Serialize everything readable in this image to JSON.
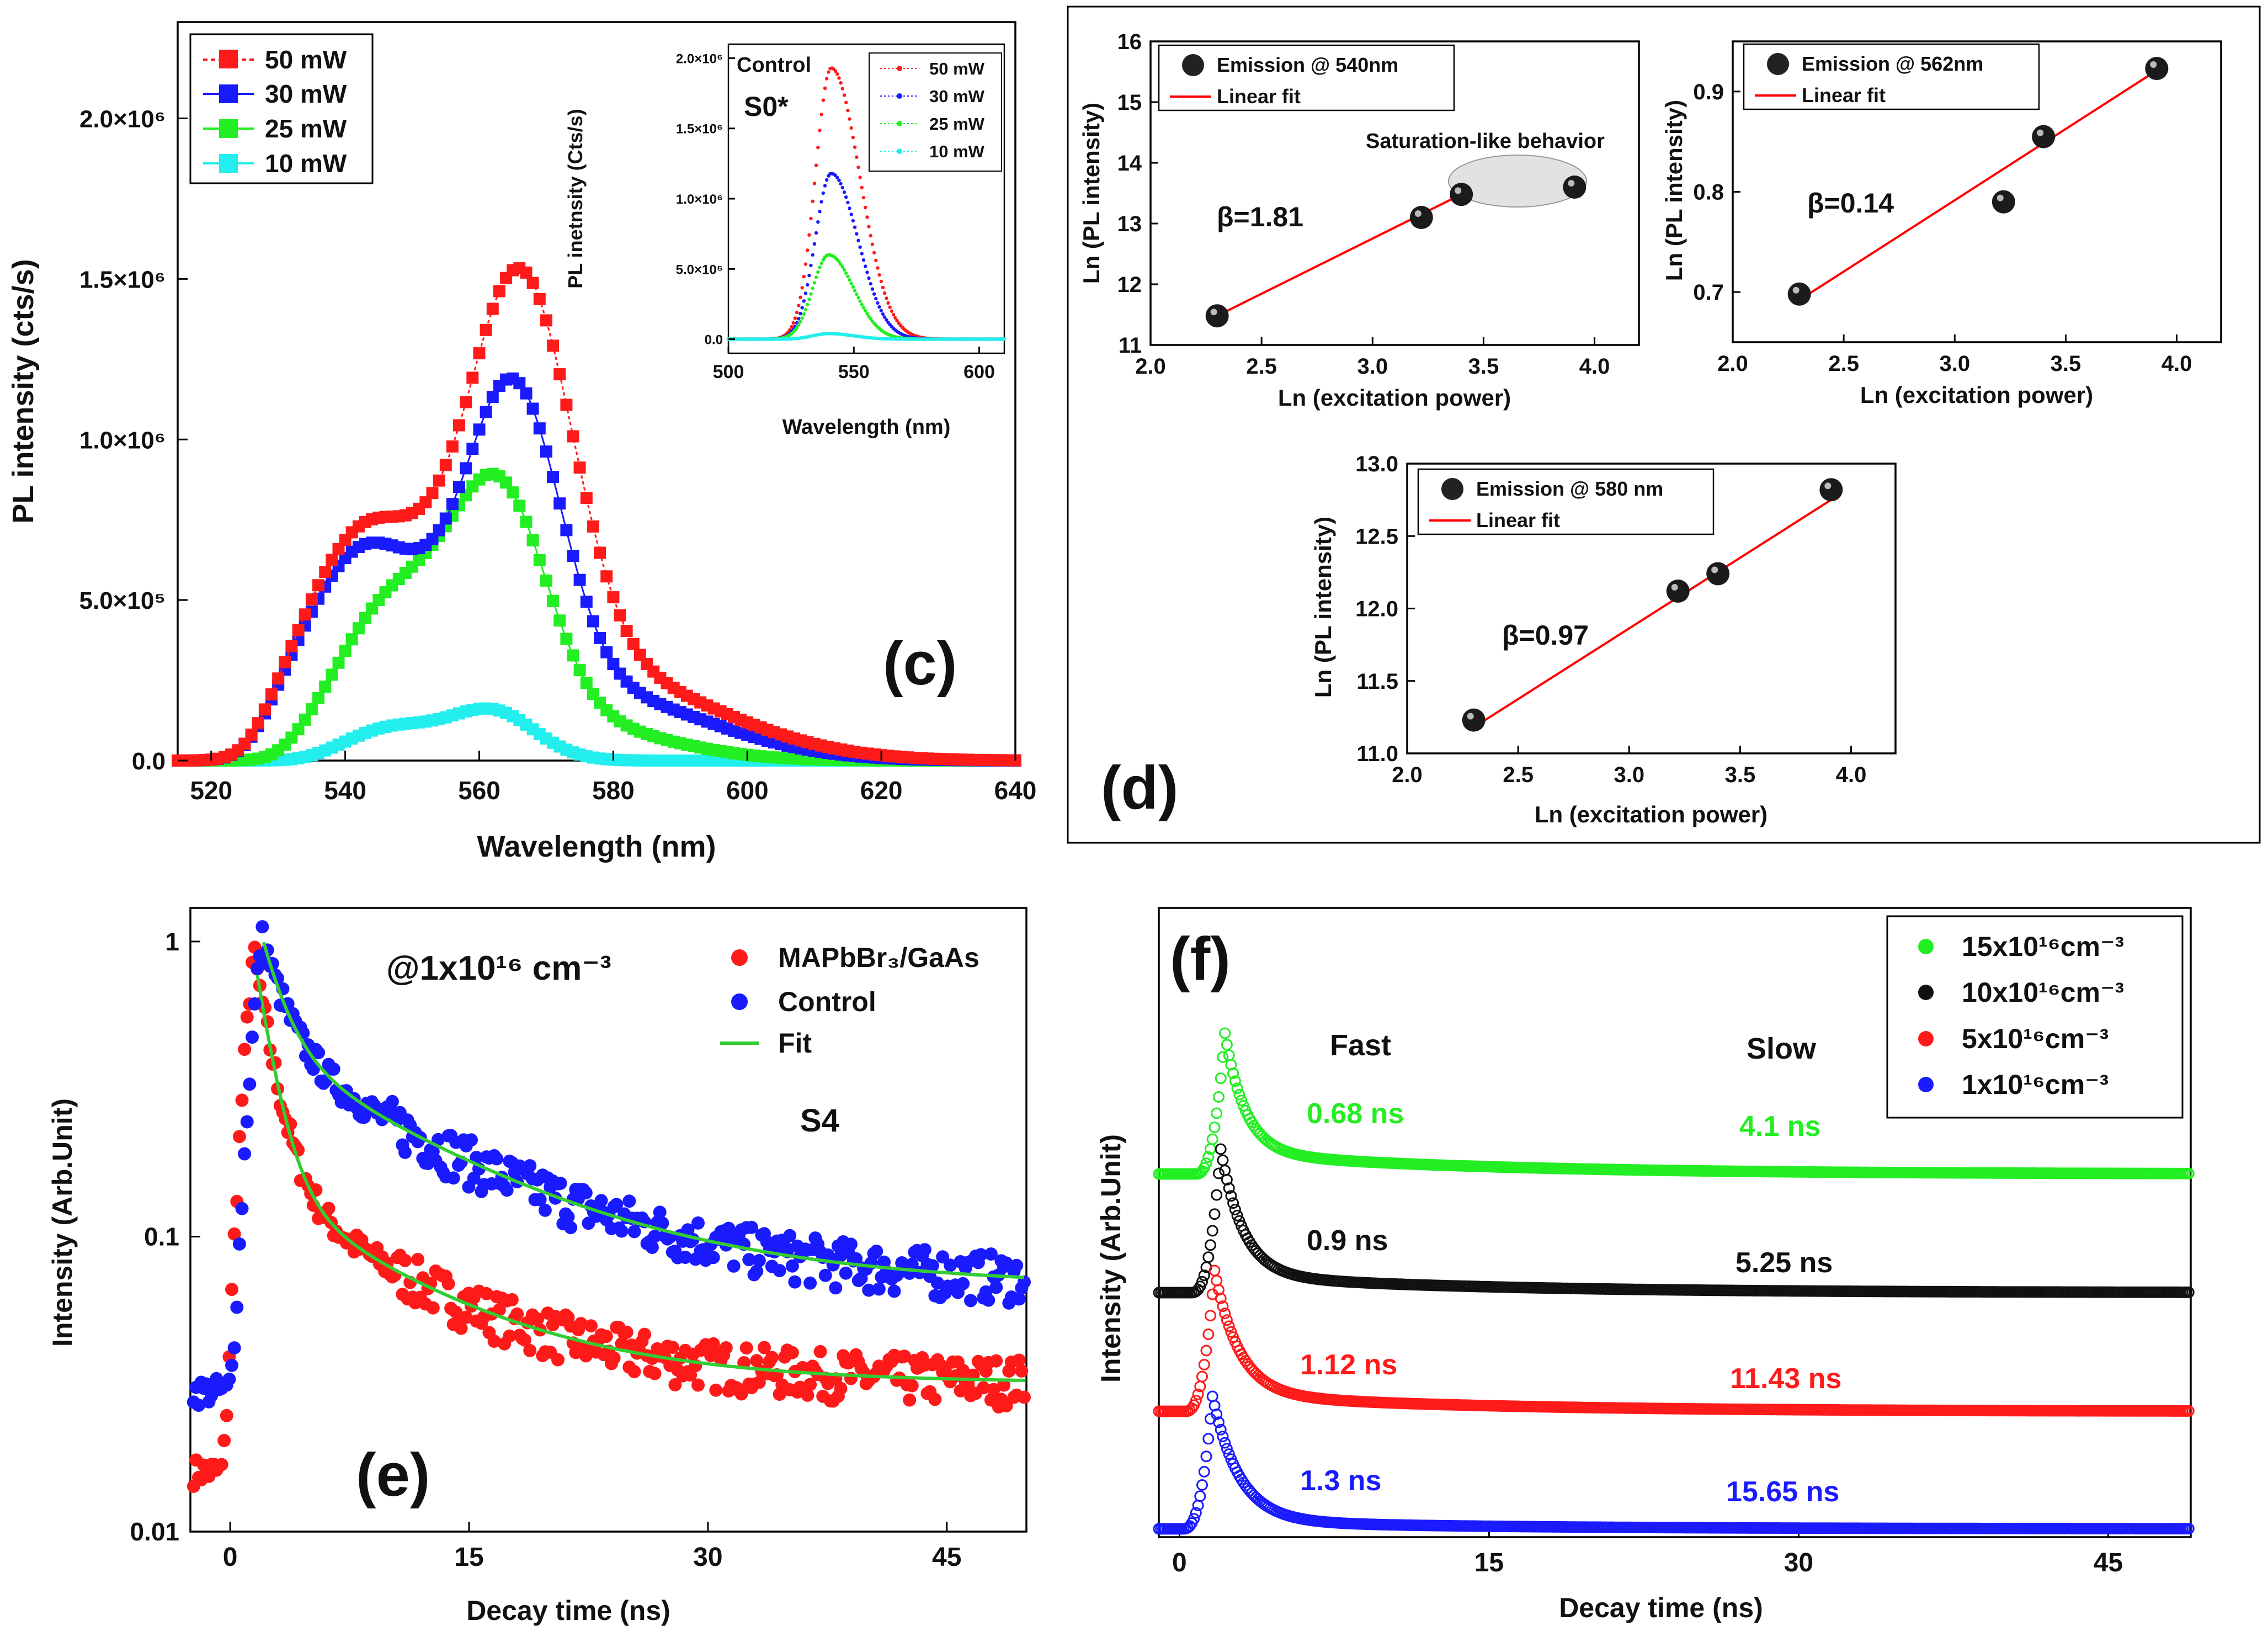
{
  "charts": {
    "c": {
      "panel_label": "(c)",
      "xlabel": "Wavelength (nm)",
      "ylabel": "PL intensity (cts/s)",
      "xticks": [
        "520",
        "540",
        "560",
        "580",
        "600",
        "620",
        "640"
      ],
      "yticks": [
        "0.0",
        "5.0×10⁵",
        "1.0×10⁶",
        "1.5×10⁶",
        "2.0×10⁶"
      ],
      "legend": [
        "50 mW",
        "30 mW",
        "25 mW",
        "10 mW"
      ],
      "inset": {
        "label_control": "Control",
        "label_sample": "S0*",
        "xlabel": "Wavelength (nm)",
        "ylabel": "PL inetnsity (Cts/s)",
        "xticks": [
          "500",
          "550",
          "600"
        ],
        "yticks": [
          "0.0",
          "5.0×10⁵",
          "1.0×10⁶",
          "1.5×10⁶",
          "2.0×10⁶"
        ],
        "legend": [
          "50 mW",
          "30 mW",
          "25 mW",
          "10 mW"
        ]
      }
    },
    "d": {
      "panel_label": "(d)",
      "p1": {
        "beta": "β=1.81",
        "legend_points": "Emission @ 540nm",
        "legend_fit": "Linear fit",
        "note": "Saturation-like behavior",
        "xlabel": "Ln (excitation power)",
        "ylabel": "Ln (PL intensity)",
        "xticks": [
          "2.0",
          "2.5",
          "3.0",
          "3.5",
          "4.0"
        ],
        "yticks": [
          "11",
          "12",
          "13",
          "14",
          "15",
          "16"
        ]
      },
      "p2": {
        "beta": "β=0.14",
        "legend_points": "Emission @ 562nm",
        "legend_fit": "Linear fit",
        "xlabel": "Ln (excitation power)",
        "ylabel": "Ln (PL intensity)",
        "xticks": [
          "2.0",
          "2.5",
          "3.0",
          "3.5",
          "4.0"
        ],
        "yticks": [
          "0.7",
          "0.8",
          "0.9"
        ]
      },
      "p3": {
        "beta": "β=0.97",
        "legend_points": "Emission @ 580 nm",
        "legend_fit": "Linear fit",
        "xlabel": "Ln (excitation power)",
        "ylabel": "Ln (PL intensity)",
        "xticks": [
          "2.0",
          "2.5",
          "3.0",
          "3.5",
          "4.0"
        ],
        "yticks": [
          "11.0",
          "11.5",
          "12.0",
          "12.5",
          "13.0"
        ]
      }
    },
    "e": {
      "panel_label": "(e)",
      "annotation": "@1x10¹⁶ cm⁻³",
      "sample": "S4",
      "xlabel": "Decay time (ns)",
      "ylabel": "Intensity (Arb.Unit)",
      "xticks": [
        "0",
        "15",
        "30",
        "45"
      ],
      "yticks": [
        "0.01",
        "0.1",
        "1"
      ],
      "legend": [
        "MAPbBr₃/GaAs",
        "Control",
        "Fit"
      ]
    },
    "f": {
      "panel_label": "(f)",
      "fast_label": "Fast",
      "slow_label": "Slow",
      "xlabel": "Decay time (ns)",
      "ylabel": "Intensity (Arb.Unit)",
      "xticks": [
        "0",
        "15",
        "30",
        "45"
      ],
      "legend": [
        "15x10¹⁶cm⁻³",
        "10x10¹⁶cm⁻³",
        "5x10¹⁶cm⁻³",
        "1x10¹⁶cm⁻³"
      ],
      "fast_times": [
        "0.68 ns",
        "0.9 ns",
        "1.12 ns",
        "1.3 ns"
      ],
      "slow_times": [
        "4.1 ns",
        "5.25 ns",
        "11.43 ns",
        "15.65 ns"
      ]
    }
  },
  "colors": {
    "red": "#ff1a1a",
    "blue": "#1a1aff",
    "green": "#22ee22",
    "cyan": "#22eeee",
    "black": "#111111",
    "fit_red": "#ff0000",
    "fit_green": "#33cc33"
  },
  "chart_data": [
    {
      "id": "c",
      "type": "line",
      "title": "(c)",
      "xlabel": "Wavelength (nm)",
      "ylabel": "PL intensity (cts/s)",
      "xlim": [
        515,
        640
      ],
      "ylim": [
        0,
        2300000
      ],
      "series": [
        {
          "name": "50 mW",
          "peaks": [
            [
              543,
              680000,
              14
            ],
            [
              566,
              1270000,
              11
            ],
            [
              577,
              260000,
              26
            ]
          ]
        },
        {
          "name": "30 mW",
          "peaks": [
            [
              543,
              640000,
              14
            ],
            [
              565,
              980000,
              10
            ],
            [
              577,
              200000,
              24
            ]
          ]
        },
        {
          "name": "25 mW",
          "peaks": [
            [
              547,
              470000,
              12
            ],
            [
              563,
              720000,
              10
            ],
            [
              573,
              110000,
              20
            ]
          ]
        },
        {
          "name": "10 mW",
          "peaks": [
            [
              547,
              100000,
              10
            ],
            [
              562,
              150000,
              9
            ]
          ]
        }
      ]
    },
    {
      "id": "c_inset",
      "type": "line",
      "title": "Control S0*",
      "xlabel": "Wavelength (nm)",
      "ylabel": "PL inetnsity (Cts/s)",
      "xlim": [
        500,
        610
      ],
      "ylim": [
        -100000,
        2100000
      ],
      "series": [
        {
          "name": "50 mW",
          "peak_x": 541,
          "peak_y": 1930000,
          "width_left": 9,
          "width_right": 16
        },
        {
          "name": "30 mW",
          "peak_x": 541,
          "peak_y": 1180000,
          "width_left": 9,
          "width_right": 15
        },
        {
          "name": "25 mW",
          "peak_x": 540,
          "peak_y": 600000,
          "width_left": 9,
          "width_right": 14
        },
        {
          "name": "10 mW",
          "peak_x": 540,
          "peak_y": 40000,
          "width_left": 9,
          "width_right": 14
        }
      ]
    },
    {
      "id": "d1",
      "type": "scatter",
      "title": "Emission @ 540nm",
      "xlabel": "Ln (excitation power)",
      "ylabel": "Ln (PL intensity)",
      "xlim": [
        2.0,
        4.2
      ],
      "ylim": [
        11,
        16
      ],
      "x": [
        2.3,
        3.22,
        3.4,
        3.91
      ],
      "y": [
        11.48,
        13.1,
        13.48,
        13.6
      ],
      "fit": {
        "x": [
          2.3,
          3.4
        ],
        "y": [
          11.48,
          13.48
        ]
      }
    },
    {
      "id": "d2",
      "type": "scatter",
      "title": "Emission @ 562nm",
      "xlabel": "Ln (excitation power)",
      "ylabel": "Ln (PL intensity)",
      "xlim": [
        2.0,
        4.2
      ],
      "ylim": [
        0.65,
        0.95
      ],
      "x": [
        2.3,
        3.22,
        3.4,
        3.91
      ],
      "y": [
        0.698,
        0.79,
        0.855,
        0.923
      ],
      "fit": {
        "x": [
          2.3,
          3.91
        ],
        "y": [
          0.692,
          0.921
        ]
      }
    },
    {
      "id": "d3",
      "type": "scatter",
      "title": "Emission @ 580 nm",
      "xlabel": "Ln (excitation power)",
      "ylabel": "Ln (PL intensity)",
      "xlim": [
        2.0,
        4.2
      ],
      "ylim": [
        11.0,
        13.0
      ],
      "x": [
        2.3,
        3.22,
        3.4,
        3.91
      ],
      "y": [
        11.23,
        12.12,
        12.24,
        12.82
      ],
      "fit": {
        "x": [
          2.3,
          3.91
        ],
        "y": [
          11.18,
          12.75
        ]
      }
    },
    {
      "id": "e",
      "type": "scatter",
      "title": "(e) S4",
      "xlabel": "Decay time (ns)",
      "ylabel": "Intensity (Arb.Unit)",
      "xlim": [
        -2.5,
        50
      ],
      "ylim": [
        0.01,
        1.3
      ],
      "yscale": "log",
      "series": [
        {
          "name": "MAPbBr₃/GaAs",
          "baseline": 0.016,
          "peak_t": 1.5,
          "amp1": 0.75,
          "tau1": 1.1,
          "amp2": 0.12,
          "tau2": 9.0,
          "offset": 0.032
        },
        {
          "name": "Control",
          "baseline": 0.03,
          "peak_t": 1.9,
          "amp1": 0.65,
          "tau1": 1.4,
          "amp2": 0.37,
          "tau2": 11.0,
          "offset": 0.068
        }
      ]
    },
    {
      "id": "f",
      "type": "scatter",
      "title": "(f)",
      "xlabel": "Decay time (ns)",
      "ylabel": "Intensity (Arb.Unit)",
      "xlim": [
        -1,
        49
      ],
      "series": [
        {
          "name": "15x10¹⁶cm⁻³",
          "fast": "0.68 ns",
          "slow": "4.1 ns",
          "peak_t": 2.2
        },
        {
          "name": "10x10¹⁶cm⁻³",
          "fast": "0.9 ns",
          "slow": "5.25 ns",
          "peak_t": 2.0
        },
        {
          "name": "5x10¹⁶cm⁻³",
          "fast": "1.12 ns",
          "slow": "11.43 ns",
          "peak_t": 1.7
        },
        {
          "name": "1x10¹⁶cm⁻³",
          "fast": "1.3 ns",
          "slow": "15.65 ns",
          "peak_t": 1.6
        }
      ]
    }
  ]
}
